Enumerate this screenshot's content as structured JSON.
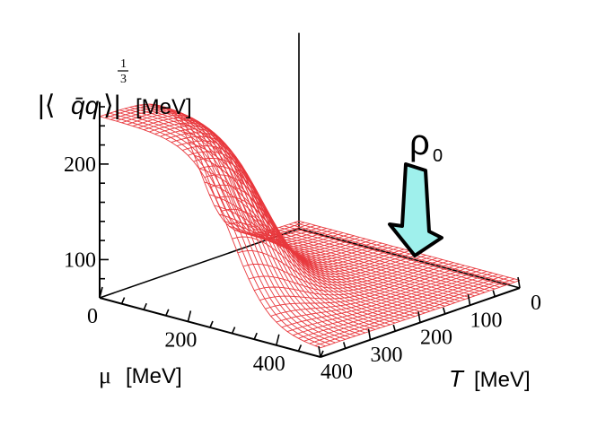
{
  "chart_data": {
    "type": "surface",
    "title": "",
    "zlabel": {
      "prefix": "|⟨",
      "operator": "q̄q",
      "suffix": "⟩|",
      "exp_num": "1",
      "exp_den": "3",
      "unit": "[MeV]"
    },
    "xlabel": {
      "symbol": "μ",
      "unit": "[MeV]"
    },
    "ylabel": {
      "symbol": "T",
      "unit": "[MeV]"
    },
    "x_axis": {
      "quantity": "mu",
      "range": [
        0,
        500
      ],
      "ticks": [
        0,
        200,
        400
      ],
      "tick_labels": [
        "0",
        "200",
        "400"
      ]
    },
    "y_axis": {
      "quantity": "T",
      "range": [
        0,
        400
      ],
      "ticks": [
        0,
        100,
        200,
        300,
        400
      ],
      "tick_labels": [
        "0",
        "100",
        "200",
        "300",
        "400"
      ]
    },
    "z_axis": {
      "range": [
        60,
        270
      ],
      "ticks": [
        100,
        200
      ],
      "tick_labels": [
        "100",
        "200"
      ]
    },
    "surface_model": {
      "description": "condensate as function of mu and T",
      "z_max": 250,
      "z_floor": 68,
      "T_transition": 200,
      "mu_transition": 300
    },
    "annotation": {
      "label": "ρ",
      "subscript": "0",
      "marker": "arrow",
      "color": "#9ff0ec"
    },
    "grid": true,
    "colors": {
      "mesh": "#e8383d",
      "axes": "#000000",
      "arrow_fill": "#9ff0ec"
    }
  }
}
